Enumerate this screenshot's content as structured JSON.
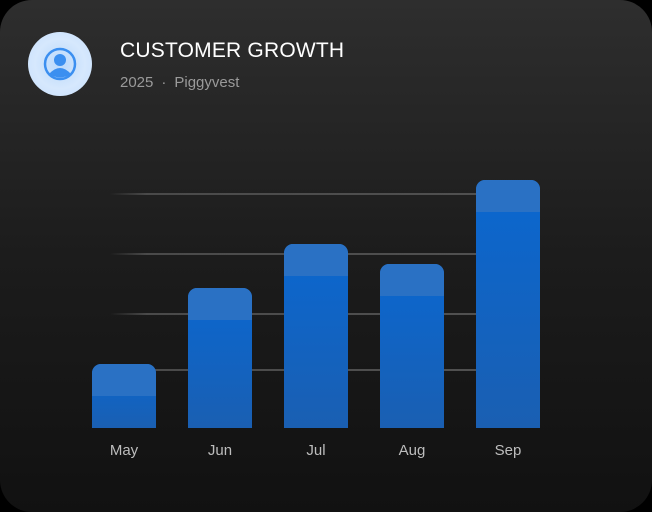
{
  "header": {
    "title": "CUSTOMER GROWTH",
    "year": "2025",
    "separator": "·",
    "company": "Piggyvest",
    "icon": "user-circle-icon"
  },
  "colors": {
    "bar": "#0a67d0",
    "bar_cap": "#2a71c4",
    "avatar_bg": "#d6e8fd",
    "avatar_icon": "#3b8ff0"
  },
  "chart_data": {
    "type": "bar",
    "title": "CUSTOMER GROWTH",
    "subtitle": "2025 · Piggyvest",
    "categories": [
      "May",
      "Jun",
      "Jul",
      "Aug",
      "Sep"
    ],
    "values": [
      64,
      140,
      184,
      164,
      248
    ],
    "xlabel": "",
    "ylabel": "",
    "grid": true,
    "legend": "none",
    "note": "values are relative bar heights in px (no y-axis labels shown)"
  }
}
